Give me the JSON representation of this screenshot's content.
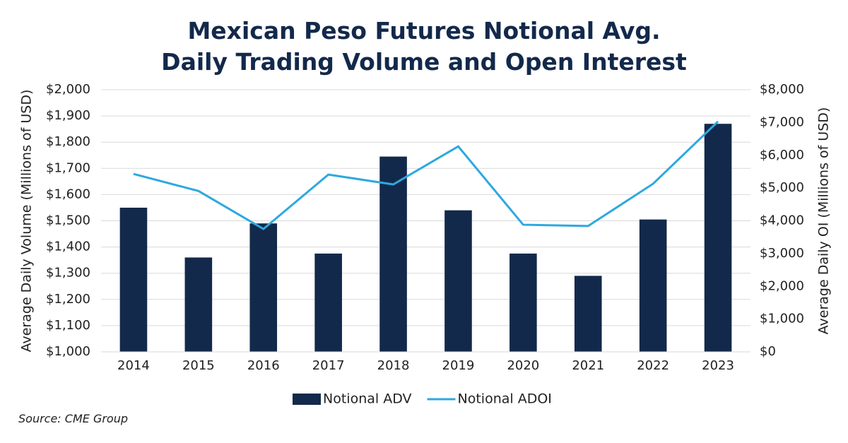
{
  "chart_data": {
    "type": "bar",
    "title": "Mexican Peso Futures Notional Avg. Daily Trading Volume and Open Interest",
    "y_label": "Average Daily Volume (Millions of USD)",
    "y2_label": "Average Daily OI (Millions of USD)",
    "source": "Source: CME Group",
    "categories": [
      "2014",
      "2015",
      "2016",
      "2017",
      "2018",
      "2019",
      "2020",
      "2021",
      "2022",
      "2023"
    ],
    "series": [
      {
        "name": "Notional ADV",
        "type": "bar",
        "color": "#13294b",
        "values": [
          1550,
          1360,
          1490,
          1375,
          1745,
          1540,
          1375,
          1290,
          1505,
          1870
        ]
      },
      {
        "name": "Notional ADOI",
        "type": "line",
        "axis": "y2",
        "color": "#2ea8df",
        "values": [
          5430,
          4910,
          3750,
          5410,
          5110,
          6270,
          3880,
          3840,
          5130,
          7030
        ]
      }
    ],
    "ylim": [
      1000,
      2000
    ],
    "yticks": [
      {
        "value": 1000,
        "label": "$1,000"
      },
      {
        "value": 1100,
        "label": "$1,100"
      },
      {
        "value": 1200,
        "label": "$1,200"
      },
      {
        "value": 1300,
        "label": "$1,300"
      },
      {
        "value": 1400,
        "label": "$1,400"
      },
      {
        "value": 1500,
        "label": "$1,500"
      },
      {
        "value": 1600,
        "label": "$1,600"
      },
      {
        "value": 1700,
        "label": "$1,700"
      },
      {
        "value": 1800,
        "label": "$1,800"
      },
      {
        "value": 1900,
        "label": "$1,900"
      },
      {
        "value": 2000,
        "label": "$2,000"
      }
    ],
    "y2lim": [
      0,
      8000
    ],
    "y2ticks": [
      {
        "value": 0,
        "label": "$0"
      },
      {
        "value": 1000,
        "label": "$1,000"
      },
      {
        "value": 2000,
        "label": "$2,000"
      },
      {
        "value": 3000,
        "label": "$3,000"
      },
      {
        "value": 4000,
        "label": "$4,000"
      },
      {
        "value": 5000,
        "label": "$5,000"
      },
      {
        "value": 6000,
        "label": "$6,000"
      },
      {
        "value": 7000,
        "label": "$7,000"
      },
      {
        "value": 8000,
        "label": "$8,000"
      }
    ],
    "grid": true,
    "legend": "bottom"
  }
}
